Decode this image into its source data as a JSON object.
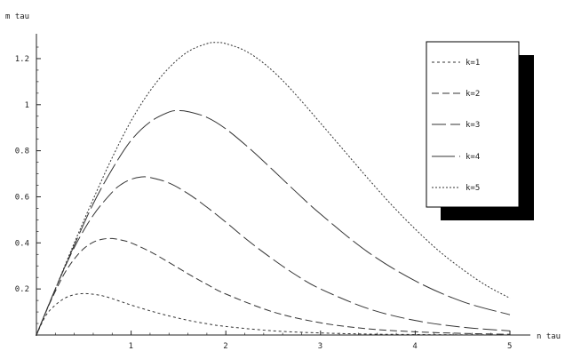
{
  "chart_data": {
    "type": "line",
    "xlabel": "n tau",
    "ylabel": "m tau",
    "xlim": [
      0,
      5.2
    ],
    "ylim": [
      0,
      1.32
    ],
    "xticks": [
      1,
      2,
      3,
      4,
      5
    ],
    "yticks": [
      0.2,
      0.4,
      0.6,
      0.8,
      1,
      1.2
    ],
    "xtick_labels": [
      "1",
      "2",
      "3",
      "4",
      "5"
    ],
    "ytick_labels": [
      "0.2",
      "0.4",
      "0.6",
      "0.8",
      "1",
      "1.2"
    ],
    "grid": false,
    "legend_position": "top-right",
    "series": [
      {
        "name": "k=1",
        "dash": "3,3",
        "x": [
          0,
          0.1,
          0.2,
          0.3,
          0.4,
          0.5,
          0.6,
          0.7,
          0.8,
          0.9,
          1.0,
          1.2,
          1.4,
          1.6,
          1.8,
          2.0,
          2.5,
          3.0,
          3.5,
          4.0,
          4.5,
          5.0
        ],
        "y": [
          0,
          0.085,
          0.13,
          0.16,
          0.175,
          0.18,
          0.177,
          0.17,
          0.158,
          0.144,
          0.13,
          0.105,
          0.083,
          0.064,
          0.049,
          0.037,
          0.018,
          0.009,
          0.004,
          0.002,
          0.001,
          0.0005
        ]
      },
      {
        "name": "k=2",
        "dash": "8,4",
        "x": [
          0,
          0.1,
          0.2,
          0.3,
          0.4,
          0.5,
          0.6,
          0.7,
          0.8,
          0.9,
          1.0,
          1.2,
          1.4,
          1.6,
          1.8,
          2.0,
          2.5,
          3.0,
          3.5,
          4.0,
          4.5,
          5.0
        ],
        "y": [
          0,
          0.1,
          0.19,
          0.27,
          0.33,
          0.375,
          0.403,
          0.416,
          0.419,
          0.412,
          0.4,
          0.362,
          0.315,
          0.266,
          0.22,
          0.178,
          0.1,
          0.053,
          0.027,
          0.014,
          0.007,
          0.003
        ]
      },
      {
        "name": "k=3",
        "dash": "16,5",
        "x": [
          0,
          0.2,
          0.4,
          0.6,
          0.8,
          0.9,
          1.0,
          1.1,
          1.2,
          1.4,
          1.6,
          1.8,
          2.0,
          2.25,
          2.5,
          2.75,
          3.0,
          3.5,
          4.0,
          4.5,
          5.0
        ],
        "y": [
          0,
          0.2,
          0.38,
          0.52,
          0.62,
          0.655,
          0.676,
          0.686,
          0.684,
          0.66,
          0.614,
          0.555,
          0.49,
          0.405,
          0.328,
          0.258,
          0.2,
          0.115,
          0.063,
          0.034,
          0.018
        ]
      },
      {
        "name": "k=4",
        "dash": "26,5",
        "x": [
          0,
          0.2,
          0.4,
          0.6,
          0.8,
          1.0,
          1.2,
          1.4,
          1.5,
          1.6,
          1.8,
          2.0,
          2.25,
          2.5,
          2.75,
          3.0,
          3.5,
          4.0,
          4.5,
          5.0
        ],
        "y": [
          0,
          0.2,
          0.39,
          0.57,
          0.72,
          0.845,
          0.925,
          0.968,
          0.974,
          0.97,
          0.945,
          0.895,
          0.81,
          0.715,
          0.618,
          0.525,
          0.36,
          0.235,
          0.145,
          0.088
        ]
      },
      {
        "name": "k=5",
        "dash": "2,2",
        "x": [
          0,
          0.2,
          0.4,
          0.6,
          0.8,
          1.0,
          1.2,
          1.4,
          1.6,
          1.8,
          1.9,
          2.0,
          2.2,
          2.4,
          2.6,
          2.8,
          3.0,
          3.25,
          3.5,
          3.75,
          4.0,
          4.25,
          4.5,
          4.75,
          5.0
        ],
        "y": [
          0,
          0.2,
          0.4,
          0.59,
          0.77,
          0.93,
          1.06,
          1.16,
          1.23,
          1.265,
          1.27,
          1.265,
          1.235,
          1.18,
          1.105,
          1.015,
          0.92,
          0.8,
          0.68,
          0.565,
          0.46,
          0.365,
          0.285,
          0.215,
          0.16
        ]
      }
    ]
  }
}
